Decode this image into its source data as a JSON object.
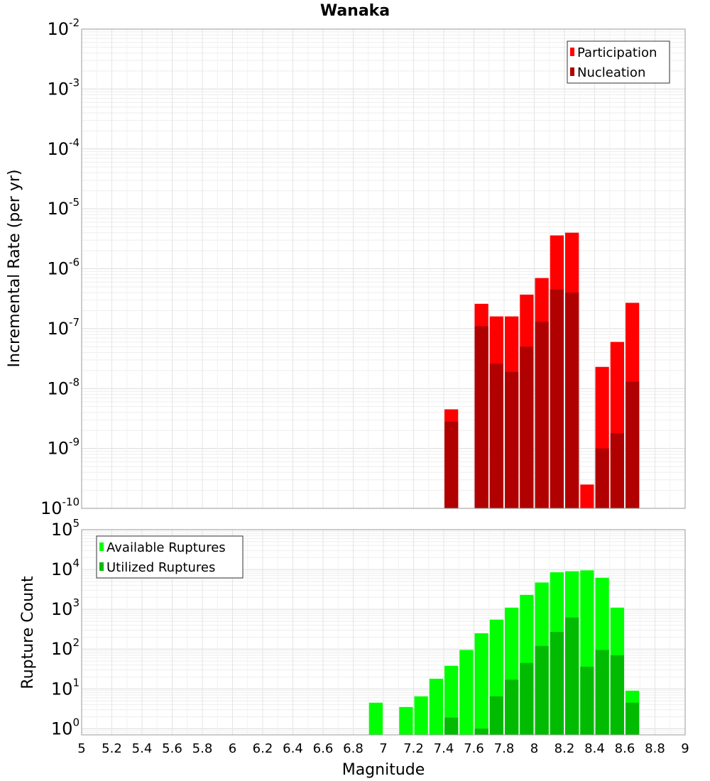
{
  "chart_data": [
    {
      "type": "bar",
      "title": "Wanaka",
      "xlabel": "",
      "ylabel": "Incremental Rate (per yr)",
      "xlim": [
        5,
        9
      ],
      "ylim": [
        1e-10,
        0.01
      ],
      "y_scale": "log",
      "grid": true,
      "legend_position": "top-right",
      "bin_width": 0.1,
      "series": [
        {
          "name": "Participation",
          "color": "#ff0000",
          "x": [
            7.45,
            7.65,
            7.75,
            7.85,
            7.95,
            8.05,
            8.15,
            8.25,
            8.35,
            8.45,
            8.55,
            8.65
          ],
          "values": [
            4.5e-09,
            2.6e-07,
            1.6e-07,
            1.6e-07,
            3.7e-07,
            7e-07,
            3.6e-06,
            4e-06,
            2.5e-10,
            2.3e-08,
            6e-08,
            2.7e-07
          ]
        },
        {
          "name": "Nucleation",
          "color": "#b00000",
          "x": [
            7.45,
            7.65,
            7.75,
            7.85,
            7.95,
            8.05,
            8.15,
            8.25,
            8.45,
            8.55,
            8.65
          ],
          "values": [
            2.8e-09,
            1.1e-07,
            2.6e-08,
            1.9e-08,
            5e-08,
            1.3e-07,
            4.5e-07,
            4e-07,
            1e-09,
            1.8e-09,
            1.3e-08
          ]
        }
      ]
    },
    {
      "type": "bar",
      "title": "",
      "xlabel": "Magnitude",
      "ylabel": "Rupture Count",
      "xlim": [
        5,
        9
      ],
      "ylim": [
        0.7,
        100000
      ],
      "y_scale": "log",
      "grid": true,
      "legend_position": "top-left",
      "bin_width": 0.1,
      "x_ticks": [
        "5",
        "5.2",
        "5.4",
        "5.6",
        "5.8",
        "6",
        "6.2",
        "6.4",
        "6.6",
        "6.8",
        "7",
        "7.2",
        "7.4",
        "7.6",
        "7.8",
        "8",
        "8.2",
        "8.4",
        "8.6",
        "8.8",
        "9"
      ],
      "series": [
        {
          "name": "Available Ruptures",
          "color": "#00ff00",
          "x": [
            6.95,
            7.15,
            7.25,
            7.35,
            7.45,
            7.55,
            7.65,
            7.75,
            7.85,
            7.95,
            8.05,
            8.15,
            8.25,
            8.35,
            8.45,
            8.55,
            8.65
          ],
          "values": [
            4.5,
            3.5,
            6.5,
            18,
            38,
            95,
            250,
            550,
            1100,
            2300,
            4700,
            8500,
            9000,
            9500,
            6200,
            1100,
            9
          ]
        },
        {
          "name": "Utilized Ruptures",
          "color": "#00bb00",
          "x": [
            7.45,
            7.65,
            7.75,
            7.85,
            7.95,
            8.05,
            8.15,
            8.25,
            8.35,
            8.45,
            8.55,
            8.65
          ],
          "values": [
            1.9,
            1.0,
            6.5,
            17,
            45,
            120,
            270,
            620,
            36,
            95,
            70,
            4.5
          ]
        }
      ]
    }
  ]
}
